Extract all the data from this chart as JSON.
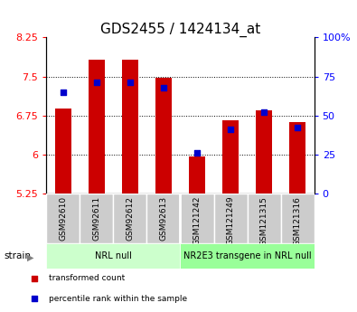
{
  "title": "GDS2455 / 1424134_at",
  "samples": [
    "GSM92610",
    "GSM92611",
    "GSM92612",
    "GSM92613",
    "GSM121242",
    "GSM121249",
    "GSM121315",
    "GSM121316"
  ],
  "transformed_count": [
    6.88,
    7.82,
    7.82,
    7.47,
    5.96,
    6.65,
    6.85,
    6.63
  ],
  "percentile_rank": [
    65,
    71,
    71,
    68,
    26,
    41,
    52,
    42
  ],
  "y_min": 5.25,
  "y_max": 8.25,
  "y_ticks": [
    5.25,
    6.0,
    6.75,
    7.5,
    8.25
  ],
  "y_tick_labels": [
    "5.25",
    "6",
    "6.75",
    "7.5",
    "8.25"
  ],
  "right_y_ticks": [
    0,
    25,
    50,
    75,
    100
  ],
  "right_y_tick_labels": [
    "0",
    "25",
    "50",
    "75",
    "100%"
  ],
  "bar_color": "#cc0000",
  "dot_color": "#0000cc",
  "groups": [
    {
      "label": "NRL null",
      "start": 0,
      "end": 4,
      "color": "#ccffcc"
    },
    {
      "label": "NR2E3 transgene in NRL null",
      "start": 4,
      "end": 8,
      "color": "#99ff99"
    }
  ],
  "sample_bg_color": "#cccccc",
  "group_label_fontsize": 7,
  "bar_width": 0.5,
  "strain_label": "strain",
  "legend_items": [
    {
      "label": "transformed count",
      "color": "#cc0000"
    },
    {
      "label": "percentile rank within the sample",
      "color": "#0000cc"
    }
  ],
  "title_fontsize": 11,
  "tick_fontsize": 8,
  "sample_fontsize": 6.5
}
